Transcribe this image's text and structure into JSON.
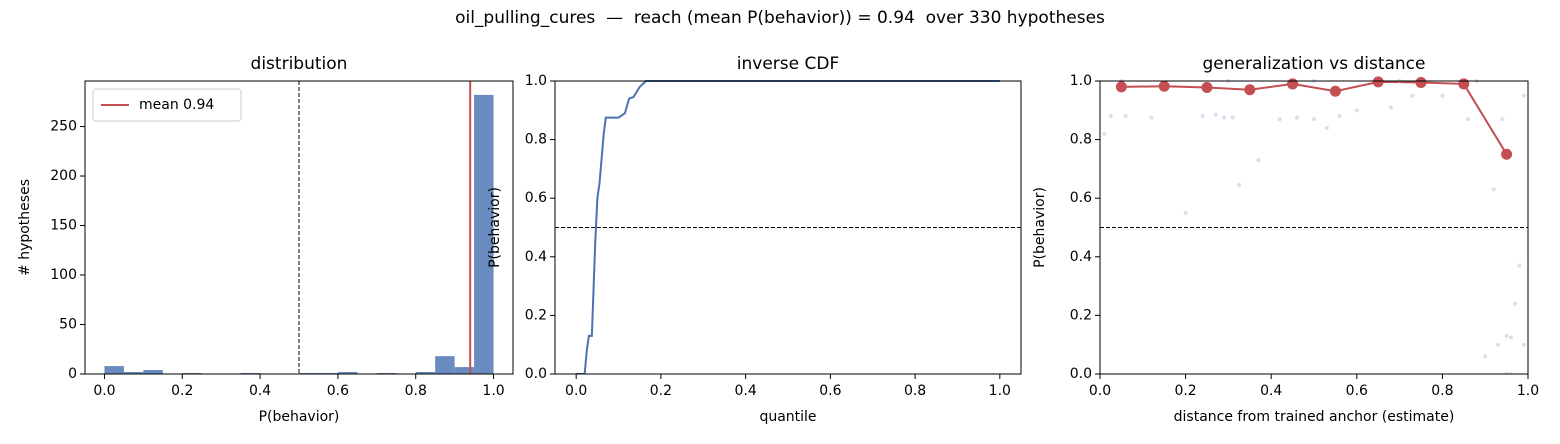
{
  "title": "oil_pulling_cures  —  reach (mean P(behavior)) = 0.94  over 330 hypotheses",
  "chart_data": [
    {
      "type": "histogram",
      "title": "distribution",
      "xlabel": "P(behavior)",
      "ylabel": "# hypotheses",
      "bins": [
        0,
        0.05,
        0.1,
        0.15,
        0.2,
        0.25,
        0.3,
        0.35,
        0.4,
        0.45,
        0.5,
        0.55,
        0.6,
        0.65,
        0.7,
        0.75,
        0.8,
        0.85,
        0.9,
        0.95,
        1.0
      ],
      "values": [
        8,
        2,
        4,
        0,
        1,
        0,
        0,
        1,
        0,
        0,
        1,
        1,
        2,
        0,
        1,
        0,
        2,
        18,
        7,
        282
      ],
      "color": "#6a8bbf",
      "xlim": [
        -0.05,
        1.05
      ],
      "ylim": [
        0,
        296
      ],
      "xticks": [
        {
          "value": 0,
          "label": "0.0"
        },
        0.2,
        0.4,
        0.6,
        0.8,
        {
          "value": 1,
          "label": "1.0"
        }
      ],
      "yticks": [
        0,
        50,
        100,
        150,
        200,
        250
      ],
      "vlines": [
        {
          "value": 0.5,
          "color": "#000000",
          "dashed": true
        }
      ],
      "mean": {
        "value": 0.94,
        "label": "mean 0.94",
        "color": "#c44e52"
      },
      "legend": "upper left"
    },
    {
      "type": "line",
      "title": "inverse CDF",
      "xlabel": "quantile",
      "ylabel": "P(behavior)",
      "series": [
        {
          "color": "#4c72b0",
          "x": [
            0,
            0.02,
            0.025,
            0.03,
            0.037,
            0.045,
            0.05,
            0.055,
            0.065,
            0.07,
            0.1,
            0.115,
            0.125,
            0.135,
            0.15,
            0.165,
            1.0
          ],
          "values": [
            0,
            0,
            0.08,
            0.13,
            0.13,
            0.45,
            0.6,
            0.65,
            0.82,
            0.875,
            0.875,
            0.89,
            0.94,
            0.945,
            0.98,
            1.0,
            1.0
          ]
        }
      ],
      "xlim": [
        -0.05,
        1.05
      ],
      "ylim": [
        0,
        1
      ],
      "xticks": [
        {
          "value": 0,
          "label": "0.0"
        },
        0.2,
        0.4,
        0.6,
        0.8,
        {
          "value": 1,
          "label": "1.0"
        }
      ],
      "yticks": [
        {
          "value": 0,
          "label": "0.0"
        },
        0.2,
        0.4,
        0.6,
        0.8,
        {
          "value": 1,
          "label": "1.0"
        }
      ],
      "hlines": [
        {
          "value": 0.5,
          "color": "#000000",
          "dashed": true
        }
      ]
    },
    {
      "type": "scatter",
      "title": "generalization vs distance",
      "xlabel": "distance from trained anchor (estimate)",
      "ylabel": "P(behavior)",
      "series": [
        {
          "color": "#b0c0dc",
          "size": 2,
          "opacity": 0.5,
          "x": [
            0.01,
            0.025,
            0.06,
            0.12,
            0.2,
            0.24,
            0.27,
            0.29,
            0.31,
            0.325,
            0.37,
            0.42,
            0.46,
            0.5,
            0.53,
            0.56,
            0.6,
            0.68,
            0.73,
            0.8,
            0.86,
            0.92,
            0.94,
            0.93,
            0.95,
            0.96,
            0.97,
            0.98,
            0.99,
            0.9,
            0.95,
            0.96,
            0.99,
            0.05,
            0.3,
            0.5,
            0.7,
            0.88
          ],
          "values": [
            0.82,
            0.88,
            0.88,
            0.875,
            0.55,
            0.88,
            0.885,
            0.875,
            0.875,
            0.645,
            0.73,
            0.87,
            0.875,
            0.87,
            0.84,
            0.88,
            0.9,
            0.91,
            0.95,
            0.95,
            0.87,
            0.63,
            0.87,
            0.1,
            0.13,
            0.125,
            0.24,
            0.37,
            0.1,
            0.06,
            0,
            0,
            0.95,
            1.0,
            1.0,
            1.0,
            1.0,
            1.0
          ]
        },
        {
          "color": "#c44e52",
          "size": 5.5,
          "connect": true,
          "x": [
            0.05,
            0.15,
            0.25,
            0.35,
            0.45,
            0.55,
            0.65,
            0.75,
            0.85,
            0.95
          ],
          "values": [
            0.98,
            0.982,
            0.978,
            0.97,
            0.99,
            0.965,
            0.997,
            0.995,
            0.99,
            0.75
          ]
        }
      ],
      "xlim": [
        0,
        1
      ],
      "ylim": [
        0,
        1
      ],
      "xticks": [
        {
          "value": 0,
          "label": "0.0"
        },
        0.2,
        0.4,
        0.6,
        0.8,
        {
          "value": 1,
          "label": "1.0"
        }
      ],
      "yticks": [
        {
          "value": 0,
          "label": "0.0"
        },
        0.2,
        0.4,
        0.6,
        0.8,
        {
          "value": 1,
          "label": "1.0"
        }
      ],
      "hlines": [
        {
          "value": 0.5,
          "color": "#000000",
          "dashed": true
        }
      ]
    }
  ]
}
